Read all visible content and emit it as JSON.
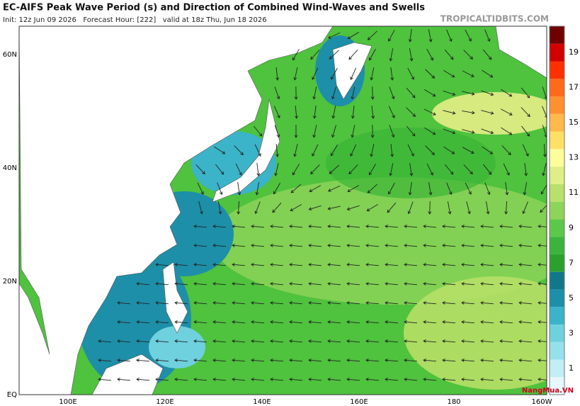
{
  "header": {
    "title": "EC-AIFS Peak Wave Period (s) and Direction of Combined Wind-Waves and Swells",
    "subtitle": "Init: 12z Jun 09 2026   Forecast Hour: [222]   valid at 18z Thu, Jun 18 2026",
    "source": "TROPICALTIDBITS.COM"
  },
  "map": {
    "lat_labels": [
      "60N",
      "40N",
      "20N",
      "EQ"
    ],
    "lon_labels": [
      "100E",
      "120E",
      "140E",
      "160E",
      "180",
      "160W"
    ]
  },
  "colorbar": {
    "labels": [
      1,
      3,
      5,
      7,
      9,
      11,
      13,
      15,
      17,
      19
    ]
  },
  "watermark": "NangMua.VN"
}
